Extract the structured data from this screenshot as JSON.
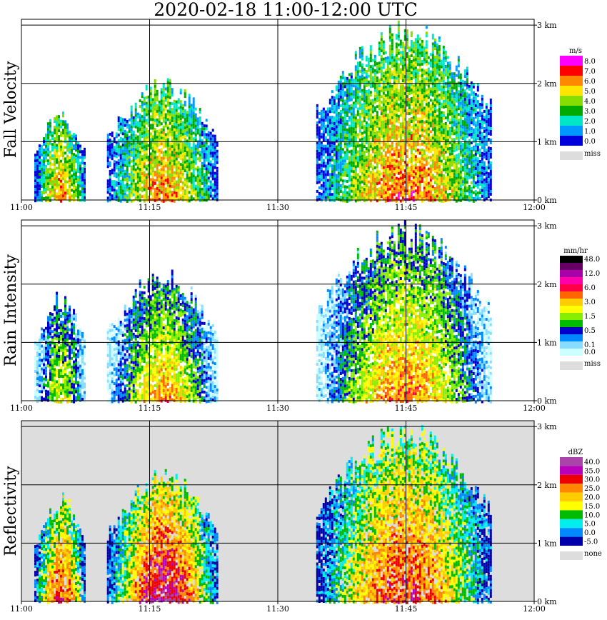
{
  "title": "2020-02-18  11:00-12:00 UTC",
  "chart_data": [
    {
      "type": "heatmap",
      "title": "Fall Velocity",
      "xlabel": "",
      "ylabel": "",
      "x_ticks": [
        "11:00",
        "11:15",
        "11:30",
        "11:45",
        "12:00"
      ],
      "y_ticks": [
        "0 km",
        "1 km",
        "2 km",
        "3 km"
      ],
      "xlim": [
        0,
        60
      ],
      "ylim": [
        0,
        3.1
      ],
      "unit": "m/s",
      "colorbar": {
        "labels": [
          "8.0",
          "7.0",
          "6.0",
          "5.0",
          "4.0",
          "3.0",
          "2.0",
          "1.0",
          "0.0"
        ],
        "colors": [
          "#ff00ff",
          "#ff0000",
          "#ff8800",
          "#ffe600",
          "#88dd00",
          "#00aa00",
          "#00e6c8",
          "#0099ff",
          "#0000dd"
        ],
        "missing_label": "miss",
        "missing_color": "#dddddd"
      },
      "background": "#ffffff",
      "echo_cells": [
        {
          "t0": 1.5,
          "t1": 7.5,
          "top": 1.55,
          "base": 0.0,
          "core": 6.0
        },
        {
          "t0": 10.0,
          "t1": 23.0,
          "top": 2.1,
          "base": 0.0,
          "core": 6.0
        },
        {
          "t0": 34.5,
          "t1": 55.0,
          "top": 3.1,
          "base": 0.0,
          "core": 6.5
        }
      ],
      "reference_lines": {
        "x": [
          15,
          30,
          45
        ],
        "y": [
          1,
          2,
          3
        ]
      }
    },
    {
      "type": "heatmap",
      "title": "Rain Intensity",
      "xlabel": "",
      "ylabel": "",
      "x_ticks": [
        "11:00",
        "11:15",
        "11:30",
        "11:45",
        "12:00"
      ],
      "y_ticks": [
        "0 km",
        "1 km",
        "2 km",
        "3 km"
      ],
      "xlim": [
        0,
        60
      ],
      "ylim": [
        0,
        3.1
      ],
      "unit": "mm/hr",
      "colorbar": {
        "labels": [
          "48.0",
          "",
          "12.0",
          "",
          "6.0",
          "",
          "3.0",
          "",
          "1.5",
          "",
          "0.5",
          "",
          "0.1",
          "0.0"
        ],
        "colors": [
          "#000000",
          "#660066",
          "#aa00aa",
          "#ff00aa",
          "#ff0044",
          "#ff6600",
          "#ffcc00",
          "#ffff00",
          "#88ee00",
          "#00bb00",
          "#0000cc",
          "#0088ff",
          "#88ddff",
          "#ccffff"
        ],
        "missing_label": "miss",
        "missing_color": "#dddddd"
      },
      "background": "#ffffff",
      "echo_cells": [
        {
          "t0": 1.5,
          "t1": 7.5,
          "top": 1.9,
          "base": 0.0,
          "core": 6.0
        },
        {
          "t0": 10.0,
          "t1": 23.0,
          "top": 2.3,
          "base": 0.0,
          "core": 7.5
        },
        {
          "t0": 34.5,
          "t1": 55.0,
          "top": 3.1,
          "base": 0.0,
          "core": 8.0
        }
      ],
      "reference_lines": {
        "x": [
          15,
          30,
          45
        ],
        "y": [
          1,
          2,
          3
        ]
      }
    },
    {
      "type": "heatmap",
      "title": "Reflectivity",
      "xlabel": "",
      "ylabel": "",
      "x_ticks": [
        "11:00",
        "11:15",
        "11:30",
        "11:45",
        "12:00"
      ],
      "y_ticks": [
        "0 km",
        "1 km",
        "2 km",
        "3 km"
      ],
      "xlim": [
        0,
        60
      ],
      "ylim": [
        0,
        3.1
      ],
      "unit": "dBZ",
      "colorbar": {
        "labels": [
          "40.0",
          "35.0",
          "30.0",
          "25.0",
          "20.0",
          "15.0",
          "10.0",
          "5.0",
          "0.0",
          "-5.0"
        ],
        "colors": [
          "#aa44aa",
          "#bb00bb",
          "#ee0000",
          "#ff8800",
          "#ffcc00",
          "#ffff00",
          "#00bb00",
          "#00eeee",
          "#0088ff",
          "#0000aa"
        ],
        "missing_label": "none",
        "missing_color": "#dddddd"
      },
      "background": "#dddddd",
      "echo_cells": [
        {
          "t0": 1.5,
          "t1": 7.5,
          "top": 1.9,
          "base": 0.0,
          "core": 7.0
        },
        {
          "t0": 10.0,
          "t1": 23.0,
          "top": 2.3,
          "base": 0.0,
          "core": 8.5
        },
        {
          "t0": 34.5,
          "t1": 55.0,
          "top": 3.1,
          "base": 0.0,
          "core": 7.0
        }
      ],
      "reference_lines": {
        "x": [
          15,
          30,
          45
        ],
        "y": [
          1,
          2,
          3
        ]
      }
    }
  ]
}
